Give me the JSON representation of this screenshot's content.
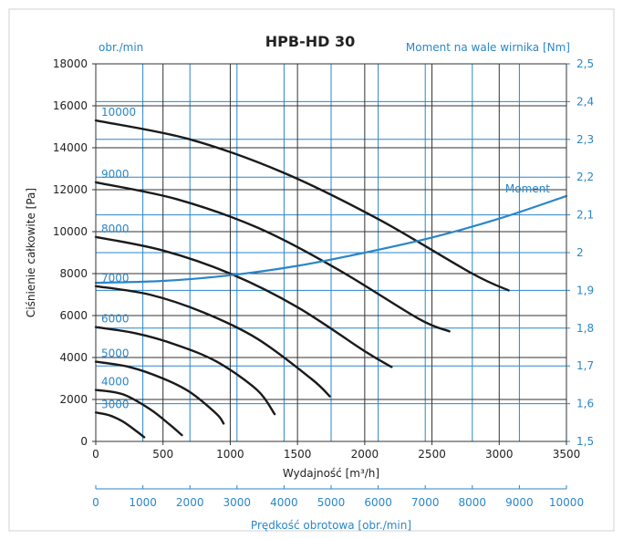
{
  "chart_data": {
    "type": "line",
    "title": "HPB-HD 30",
    "xlabel": "Wydajność [m³/h]",
    "ylabel": "Ciśnienie całkowite [Pa]",
    "y2label": "Moment na wale wirnika [Nm]",
    "speed_unit_label": "obr./min",
    "x2label": "Prędkość obrotowa [obr./min]",
    "xlim": [
      0,
      3500
    ],
    "ylim": [
      0,
      18000
    ],
    "y2lim": [
      1.5,
      2.5
    ],
    "x2lim": [
      0,
      10000
    ],
    "x_ticks": [
      "0",
      "500",
      "1000",
      "1500",
      "2000",
      "2500",
      "3000",
      "3500"
    ],
    "y_ticks": [
      "0",
      "2000",
      "4000",
      "6000",
      "8000",
      "10000",
      "12000",
      "14000",
      "16000",
      "18000"
    ],
    "y2_ticks": [
      "1,5",
      "1,6",
      "1,7",
      "1,8",
      "1,9",
      "2",
      "2,1",
      "2,2",
      "2,3",
      "2,4",
      "2,5"
    ],
    "x2_ticks": [
      "0",
      "1000",
      "2000",
      "3000",
      "4000",
      "5000",
      "6000",
      "7000",
      "8000",
      "9000",
      "10000"
    ],
    "grid": true,
    "colors": {
      "pressure": "#1a1a1a",
      "moment": "#2a86c9",
      "axis_blue": "#2a86c9"
    },
    "series": [
      {
        "name": "3000",
        "x": [
          0,
          100,
          200,
          300,
          360
        ],
        "y": [
          1380,
          1250,
          950,
          500,
          200
        ]
      },
      {
        "name": "4000",
        "x": [
          0,
          200,
          400,
          550,
          640
        ],
        "y": [
          2450,
          2250,
          1550,
          800,
          300
        ]
      },
      {
        "name": "5000",
        "x": [
          0,
          250,
          500,
          700,
          900,
          950
        ],
        "y": [
          3800,
          3550,
          3000,
          2350,
          1300,
          850
        ]
      },
      {
        "name": "6000",
        "x": [
          0,
          300,
          600,
          900,
          1200,
          1330
        ],
        "y": [
          5450,
          5150,
          4600,
          3800,
          2450,
          1300
        ]
      },
      {
        "name": "7000",
        "x": [
          0,
          400,
          800,
          1200,
          1600,
          1740
        ],
        "y": [
          7400,
          7000,
          6150,
          4900,
          3000,
          2150
        ]
      },
      {
        "name": "8000",
        "x": [
          0,
          500,
          1000,
          1500,
          2000,
          2200
        ],
        "y": [
          9750,
          9100,
          8000,
          6400,
          4300,
          3550
        ]
      },
      {
        "name": "9000",
        "x": [
          0,
          600,
          1200,
          1800,
          2400,
          2630
        ],
        "y": [
          12350,
          11550,
          10200,
          8200,
          5850,
          5250
        ]
      },
      {
        "name": "10000",
        "x": [
          0,
          700,
          1400,
          2100,
          2800,
          3070
        ],
        "y": [
          15300,
          14400,
          12800,
          10600,
          8000,
          7200
        ]
      },
      {
        "name": "Moment",
        "axis": "right",
        "x": [
          0,
          500,
          1000,
          1500,
          2000,
          2500,
          3000,
          3500
        ],
        "y": [
          1.92,
          1.925,
          1.94,
          1.965,
          2.0,
          2.04,
          2.09,
          2.15
        ]
      }
    ]
  }
}
